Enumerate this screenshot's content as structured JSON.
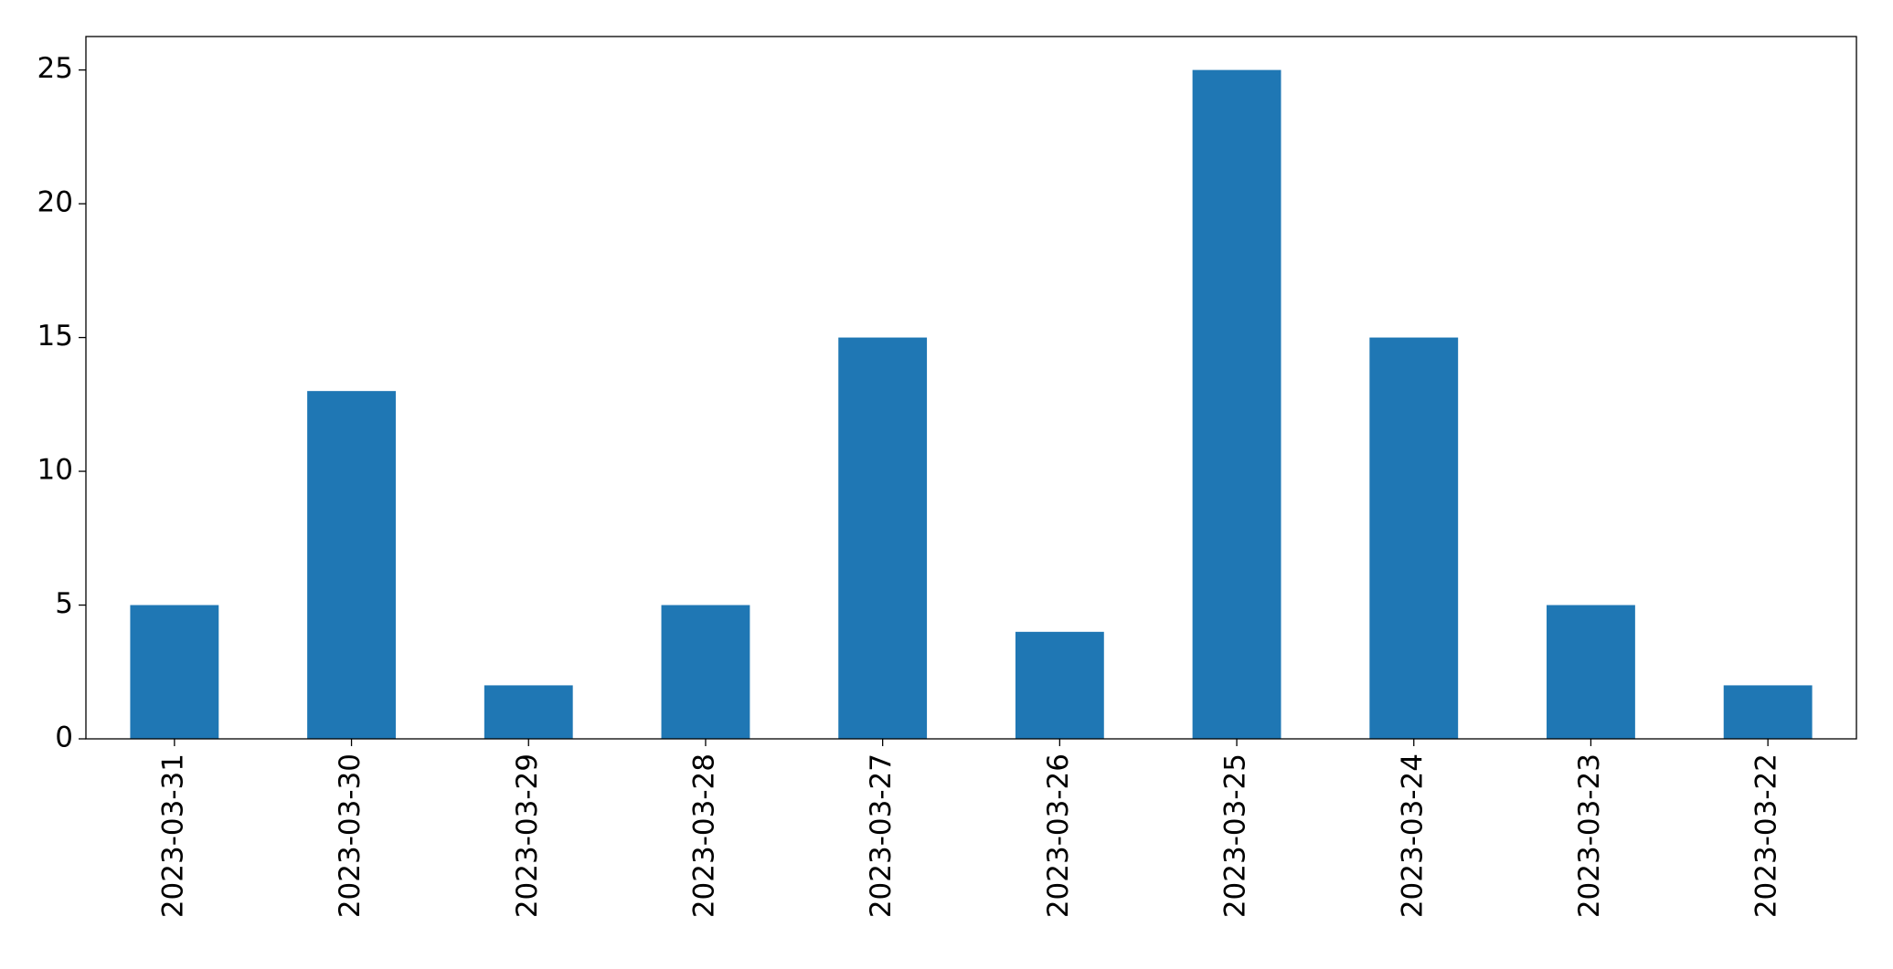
{
  "chart_data": {
    "type": "bar",
    "categories": [
      "2023-03-31",
      "2023-03-30",
      "2023-03-29",
      "2023-03-28",
      "2023-03-27",
      "2023-03-26",
      "2023-03-25",
      "2023-03-24",
      "2023-03-23",
      "2023-03-22"
    ],
    "values": [
      5,
      13,
      2,
      5,
      15,
      4,
      25,
      15,
      5,
      2
    ],
    "color": "#1f77b4",
    "ylim": [
      0,
      26.25
    ],
    "yticks": [
      0,
      5,
      10,
      15,
      20,
      25
    ],
    "grid": false
  }
}
